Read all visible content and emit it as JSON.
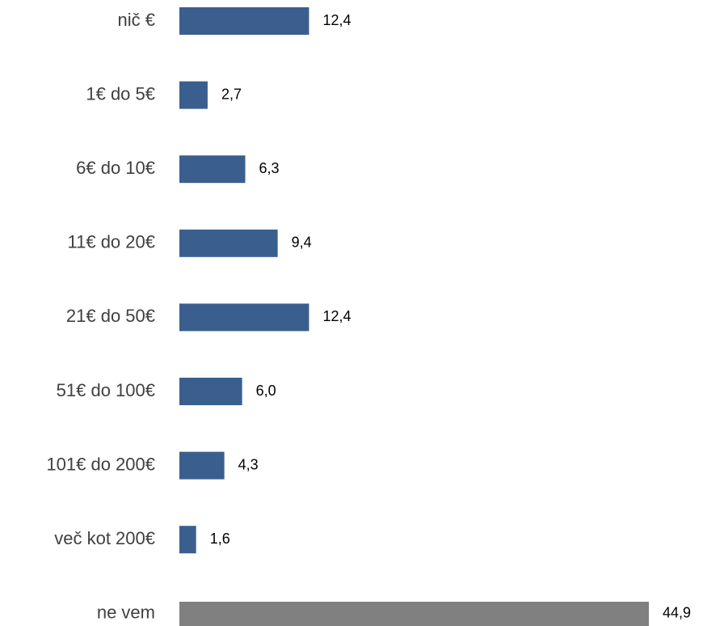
{
  "chart_data": {
    "type": "bar",
    "orientation": "horizontal",
    "categories": [
      "nič €",
      "1€ do 5€",
      "6€ do 10€",
      "11€ do 20€",
      "21€ do 50€",
      "51€ do 100€",
      "101€ do 200€",
      "več kot 200€",
      "ne vem"
    ],
    "values": [
      12.4,
      2.7,
      6.3,
      9.4,
      12.4,
      6.0,
      4.3,
      1.6,
      44.9
    ],
    "value_labels": [
      "12,4",
      "2,7",
      "6,3",
      "9,4",
      "12,4",
      "6,0",
      "4,3",
      "1,6",
      "44,9"
    ],
    "colors": [
      "#3a5f8f",
      "#3a5f8f",
      "#3a5f8f",
      "#3a5f8f",
      "#3a5f8f",
      "#3a5f8f",
      "#3a5f8f",
      "#3a5f8f",
      "#808080"
    ]
  }
}
